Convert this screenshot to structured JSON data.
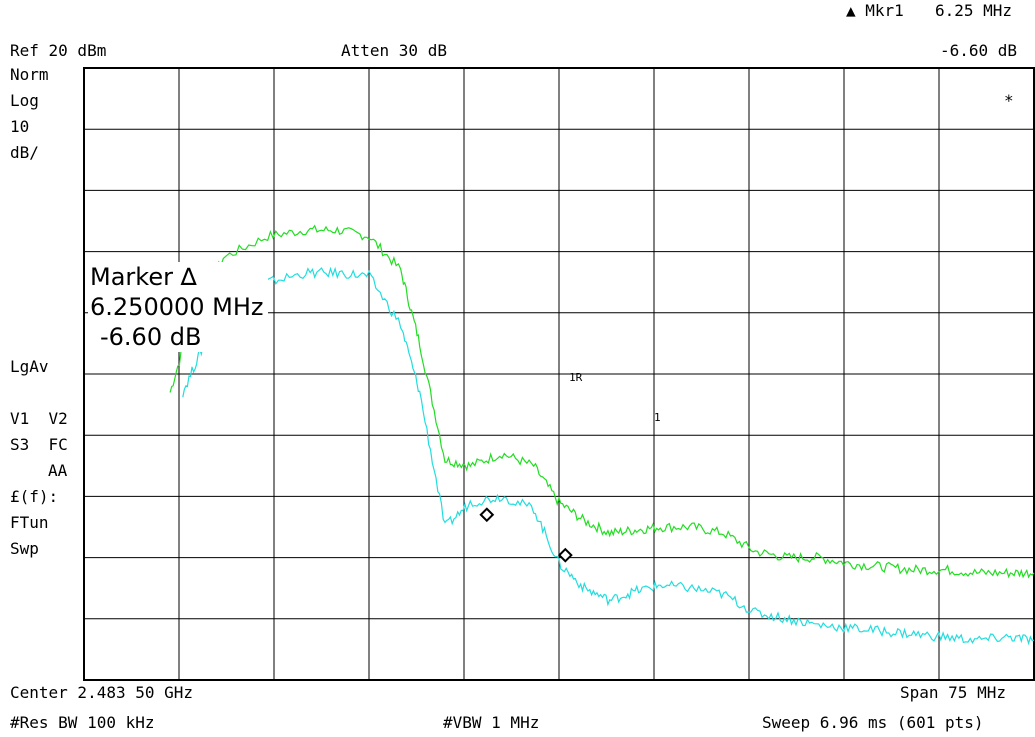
{
  "header": {
    "marker_title": "▲ Mkr1",
    "marker_freq": "6.25 MHz",
    "marker_delta": "-6.60 dB",
    "ref_level": "Ref 20 dBm",
    "attenuation": "Atten 30 dB"
  },
  "left_panel": {
    "scale_mode": "Norm",
    "scale_type": "Log",
    "scale_value": "10",
    "scale_unit": "dB/",
    "avg_mode": "LgAv",
    "trace_flags_1": "V1  V2",
    "trace_flags_2": "S3  FC",
    "trace_flags_3": "AA",
    "func_label": "£(f):",
    "func_value": "FTun",
    "sweep_label": "Swp"
  },
  "annotations": {
    "star": "*",
    "ref_marker_label": "1R",
    "delta_marker_label": "1"
  },
  "marker_readout": {
    "title": "Marker ∆",
    "freq": "6.250000 MHz",
    "value": "-6.60 dB"
  },
  "footer": {
    "center": "Center 2.483 50 GHz",
    "span": "Span 75 MHz",
    "rbw": "#Res BW 100 kHz",
    "vbw": "#VBW 1 MHz",
    "sweep": "Sweep 6.96 ms (601 pts)"
  },
  "colors": {
    "trace1": "#22dd22",
    "trace2": "#22dddd",
    "grid": "#000000"
  },
  "chart_data": {
    "type": "line",
    "title": "",
    "xlabel": "",
    "ylabel": "",
    "x_center_ghz": 2.4835,
    "x_span_mhz": 75,
    "xlim": [
      2.446,
      2.521
    ],
    "ylim": [
      -80,
      20
    ],
    "y_ref_dbm": 20,
    "y_scale_db_per_div": 10,
    "grid": true,
    "series": [
      {
        "x": [
          2.4528,
          2.4545,
          2.457,
          2.4605,
          2.4635,
          2.466,
          2.4685,
          2.471,
          2.4725,
          2.4745,
          2.4765,
          2.479,
          2.4815,
          2.4835,
          2.4855,
          2.4875,
          2.4895,
          2.4915,
          2.494,
          2.4965,
          2.499,
          2.5015,
          2.504,
          2.5065,
          2.509,
          2.5115,
          2.514,
          2.5165,
          2.519,
          2.521
        ],
        "values": [
          -33,
          -21,
          -11,
          -7.5,
          -6.5,
          -6.5,
          -7.5,
          -13,
          -25,
          -44,
          -45,
          -43,
          -45,
          -51,
          -54,
          -56,
          -55.5,
          -55,
          -55,
          -56,
          -59,
          -60,
          -60,
          -61,
          -61.5,
          -62,
          -62,
          -62.5,
          -62.5,
          -62.5
        ]
      },
      {
        "x": [
          2.4538,
          2.4555,
          2.458,
          2.4605,
          2.4635,
          2.466,
          2.4685,
          2.471,
          2.4725,
          2.4745,
          2.4765,
          2.479,
          2.4815,
          2.4835,
          2.4855,
          2.4875,
          2.4895,
          2.4915,
          2.494,
          2.4965,
          2.499,
          2.5015,
          2.504,
          2.5065,
          2.509,
          2.5115,
          2.514,
          2.5165,
          2.519,
          2.521
        ],
        "values": [
          -33,
          -25,
          -18,
          -15,
          -13.5,
          -13.5,
          -14,
          -22,
          -33,
          -55,
          -51,
          -50,
          -52,
          -61,
          -65,
          -67,
          -65.5,
          -64.5,
          -65,
          -66,
          -69,
          -70,
          -71,
          -71.5,
          -72,
          -72.5,
          -73,
          -73.5,
          -73,
          -73.5
        ]
      }
    ],
    "markers": [
      {
        "label": "1R",
        "x": 2.4778,
        "y": -53
      },
      {
        "label": "1",
        "x": 2.484,
        "y": -59.6
      }
    ]
  }
}
